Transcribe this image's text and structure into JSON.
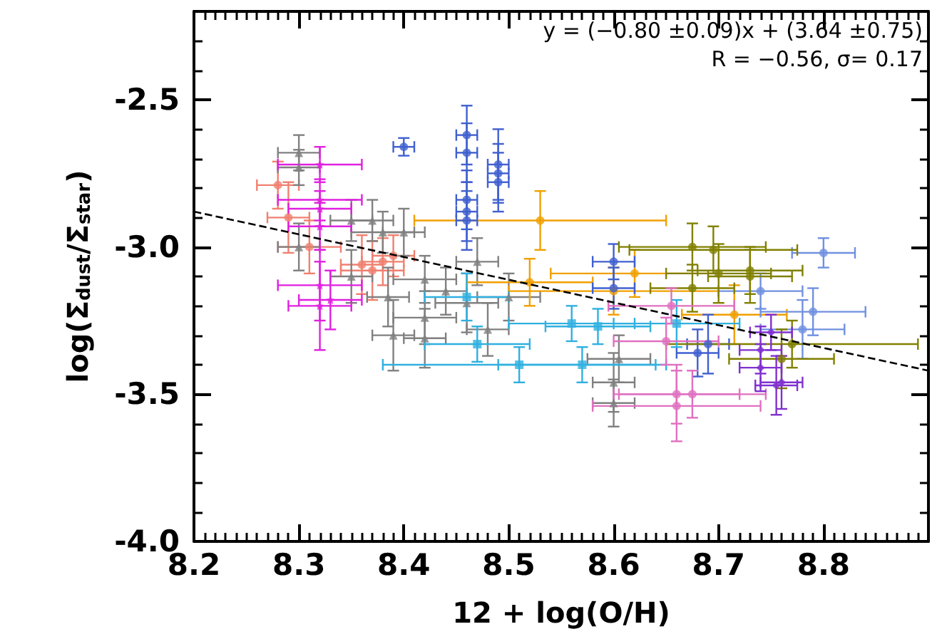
{
  "chart_data": {
    "type": "scatter",
    "xlabel": "12 + log(O/H)",
    "ylabel": "log(Σ$_{dust}$/Σ$_{star}$)",
    "annotations": [
      "y = (−0.80 ±0.09)x + (3.64 ±0.75)",
      "R = −0.56, σ= 0.17"
    ],
    "xlim": [
      8.2,
      8.9
    ],
    "xticks": [
      8.2,
      8.3,
      8.4,
      8.5,
      8.6,
      8.7,
      8.8
    ],
    "ylim": [
      -4.0,
      -2.2
    ],
    "yticks": [
      {
        "value": -4.0,
        "label": "-4.0"
      },
      {
        "value": -3.5,
        "label": "-3.5"
      },
      {
        "value": -3.0,
        "label": "-3.0"
      },
      {
        "value": -2.5,
        "label": "-2.5"
      }
    ],
    "series": [
      {
        "color": "#f08070",
        "marker": "circle",
        "x": [
          8.28,
          8.29,
          8.36,
          8.37,
          8.38,
          8.39,
          8.31
        ],
        "values": [
          -2.79,
          -2.9,
          -3.06,
          -3.08,
          -3.05,
          -3.03,
          -3.0
        ],
        "errors": [
          0.08,
          0.12,
          0.1,
          0.1,
          0.08,
          0.07,
          0.09
        ],
        "xerrors": [
          0.02,
          0.02,
          0.02,
          0.03,
          0.02,
          0.02,
          0.03
        ]
      },
      {
        "color": "#808080",
        "marker": "triangle",
        "x": [
          8.3,
          8.3,
          8.3,
          8.35,
          8.37,
          8.38,
          8.4,
          8.35,
          8.385,
          8.39,
          8.42,
          8.42,
          8.42,
          8.44,
          8.46,
          8.48,
          8.5,
          8.6,
          8.6,
          8.605,
          8.47
        ],
        "values": [
          -2.68,
          -2.73,
          -3.0,
          -2.91,
          -2.91,
          -2.95,
          -2.95,
          -3.1,
          -3.17,
          -3.3,
          -3.24,
          -3.31,
          -3.11,
          -3.15,
          -3.19,
          -3.28,
          -3.17,
          -3.46,
          -3.53,
          -3.38,
          -3.05
        ],
        "errors": [
          0.06,
          0.06,
          0.08,
          0.07,
          0.07,
          0.07,
          0.08,
          0.09,
          0.1,
          0.12,
          0.09,
          0.1,
          0.08,
          0.08,
          0.1,
          0.09,
          0.08,
          0.1,
          0.08,
          0.08,
          0.08
        ],
        "xerrors": [
          0.02,
          0.02,
          0.02,
          0.02,
          0.02,
          0.03,
          0.02,
          0.02,
          0.02,
          0.02,
          0.03,
          0.02,
          0.03,
          0.02,
          0.03,
          0.02,
          0.03,
          0.02,
          0.02,
          0.03,
          0.02
        ]
      },
      {
        "color": "#e020e0",
        "marker": "star",
        "x": [
          8.32,
          8.32,
          8.32,
          8.32,
          8.32,
          8.32,
          8.33
        ],
        "values": [
          -2.72,
          -2.84,
          -2.87,
          -2.93,
          -3.13,
          -3.2,
          -3.18
        ],
        "errors": [
          0.06,
          0.07,
          0.06,
          0.08,
          0.12,
          0.15,
          0.1
        ],
        "xerrors": [
          0.04,
          0.04,
          0.03,
          0.03,
          0.04,
          0.03,
          0.03
        ]
      },
      {
        "color": "#f0a000",
        "marker": "circle",
        "x": [
          8.53,
          8.6,
          8.62,
          8.715,
          8.52
        ],
        "values": [
          -2.91,
          -3.15,
          -3.09,
          -3.23,
          -3.12
        ],
        "errors": [
          0.1,
          0.08,
          0.08,
          0.1,
          0.08
        ],
        "xerrors": [
          0.12,
          0.1,
          0.08,
          0.05,
          0.06
        ]
      },
      {
        "color": "#4060d0",
        "marker": "circle",
        "x": [
          8.46,
          8.46,
          8.46,
          8.46,
          8.46,
          8.49,
          8.49,
          8.49,
          8.4,
          8.6,
          8.6,
          8.68,
          8.69
        ],
        "values": [
          -2.62,
          -2.68,
          -2.84,
          -2.88,
          -2.91,
          -2.72,
          -2.75,
          -2.78,
          -2.66,
          -3.05,
          -3.14,
          -3.36,
          -3.33
        ],
        "errors": [
          0.1,
          0.1,
          0.1,
          0.1,
          0.1,
          0.12,
          0.1,
          0.1,
          0.03,
          0.06,
          0.07,
          0.08,
          0.1
        ],
        "xerrors": [
          0.01,
          0.01,
          0.01,
          0.01,
          0.01,
          0.01,
          0.01,
          0.01,
          0.01,
          0.02,
          0.02,
          0.02,
          0.02
        ]
      },
      {
        "color": "#7090e0",
        "marker": "circle",
        "x": [
          8.8,
          8.79,
          8.78,
          8.74
        ],
        "values": [
          -3.02,
          -3.22,
          -3.28,
          -3.15
        ],
        "errors": [
          0.05,
          0.08,
          0.1,
          0.06
        ],
        "xerrors": [
          0.03,
          0.05,
          0.04,
          0.04
        ]
      },
      {
        "color": "#808000",
        "marker": "circle",
        "x": [
          8.675,
          8.695,
          8.7,
          8.73,
          8.675,
          8.76,
          8.77,
          8.73
        ],
        "values": [
          -3.0,
          -3.01,
          -3.09,
          -3.08,
          -3.14,
          -3.38,
          -3.33,
          -3.1
        ],
        "errors": [
          0.08,
          0.08,
          0.1,
          0.08,
          0.08,
          0.1,
          0.08,
          0.09
        ],
        "xerrors": [
          0.07,
          0.08,
          0.05,
          0.05,
          0.04,
          0.05,
          0.12,
          0.04
        ]
      },
      {
        "color": "#30b0e0",
        "marker": "square",
        "x": [
          8.51,
          8.57,
          8.56,
          8.585,
          8.66,
          8.46,
          8.47
        ],
        "values": [
          -3.4,
          -3.4,
          -3.26,
          -3.27,
          -3.26,
          -3.17,
          -3.33
        ],
        "errors": [
          0.06,
          0.06,
          0.06,
          0.06,
          0.08,
          0.08,
          0.06
        ],
        "xerrors": [
          0.13,
          0.08,
          0.06,
          0.05,
          0.06,
          0.04,
          0.05
        ]
      },
      {
        "color": "#e070c0",
        "marker": "circle",
        "x": [
          8.66,
          8.66,
          8.675,
          8.655,
          8.65
        ],
        "values": [
          -3.5,
          -3.54,
          -3.5,
          -3.2,
          -3.32
        ],
        "errors": [
          0.1,
          0.12,
          0.08,
          0.06,
          0.08
        ],
        "xerrors": [
          0.06,
          0.08,
          0.07,
          0.06,
          0.05
        ]
      },
      {
        "color": "#8030d0",
        "marker": "diamond",
        "x": [
          8.74,
          8.74,
          8.755,
          8.76,
          8.75
        ],
        "values": [
          -3.35,
          -3.41,
          -3.47,
          -3.46,
          -3.29
        ],
        "errors": [
          0.08,
          0.08,
          0.1,
          0.09,
          0.06
        ],
        "xerrors": [
          0.02,
          0.02,
          0.02,
          0.02,
          0.02
        ]
      },
      {
        "type": "line",
        "color": "#000000",
        "marker": "none",
        "line_style": "dashed",
        "x": [
          8.2,
          8.9
        ],
        "values": [
          -2.88,
          -3.42
        ]
      }
    ]
  }
}
